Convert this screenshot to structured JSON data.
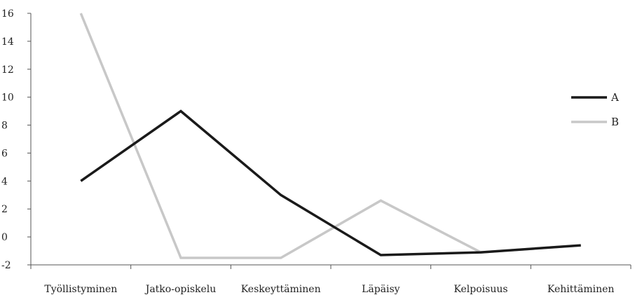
{
  "chart_data": {
    "type": "line",
    "categories": [
      "Työllistyminen",
      "Jatko-opiskelu",
      "Keskeyttäminen",
      "Läpäisy",
      "Kelpoisuus",
      "Kehittäminen"
    ],
    "series": [
      {
        "name": "A",
        "values": [
          4,
          9,
          3,
          -1.3,
          -1.1,
          -0.6
        ],
        "color": "#1a1a1a"
      },
      {
        "name": "B",
        "values": [
          16,
          -1.5,
          -1.5,
          2.6,
          -1.1,
          -0.6
        ],
        "color": "#c8c8c8"
      }
    ],
    "yticks": [
      -2,
      0,
      2,
      4,
      6,
      8,
      10,
      12,
      14,
      16
    ],
    "ylim": [
      -2,
      16
    ],
    "title": "",
    "xlabel": "",
    "ylabel": "",
    "legend_position": "right",
    "grid": false
  }
}
